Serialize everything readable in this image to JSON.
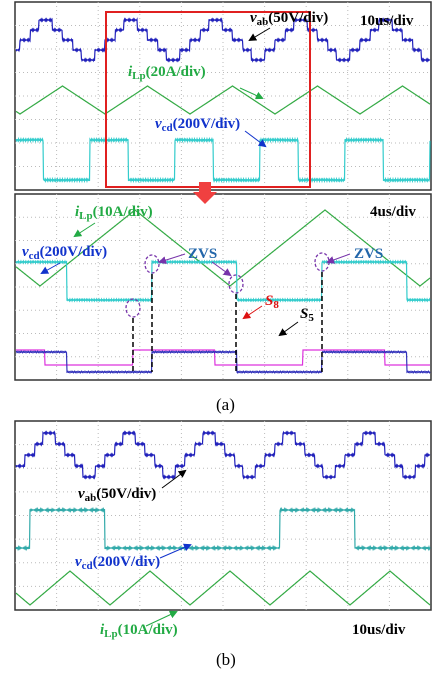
{
  "panel_a": {
    "top_scope": {
      "vab": {
        "symbol": "v",
        "subscript": "ab",
        "scale": "(50V/div)"
      },
      "time_div": "10us/div",
      "iLp": {
        "symbol": "i",
        "subscript": "Lp",
        "scale": "(20A/div)"
      },
      "vcd": {
        "symbol": "v",
        "subscript": "cd",
        "scale": "(200V/div)"
      }
    },
    "zoom_scope": {
      "iLp": {
        "symbol": "i",
        "subscript": "Lp",
        "scale": "(10A/div)"
      },
      "time_div": "4us/div",
      "vcd": {
        "symbol": "v",
        "subscript": "cd",
        "scale": "(200V/div)"
      },
      "zvs_labels": [
        "ZVS",
        "ZVS"
      ],
      "s8": {
        "symbol": "S",
        "subscript": "8"
      },
      "s5": {
        "symbol": "S",
        "subscript": "5"
      }
    },
    "caption": "(a)"
  },
  "panel_b": {
    "scope": {
      "vab": {
        "symbol": "v",
        "subscript": "ab",
        "scale": "(50V/div)"
      },
      "vcd": {
        "symbol": "v",
        "subscript": "cd",
        "scale": "(200V/div)"
      },
      "iLp": {
        "symbol": "i",
        "subscript": "Lp",
        "scale": "(10A/div)"
      },
      "time_div": "10us/div"
    },
    "caption": "(b)"
  }
}
